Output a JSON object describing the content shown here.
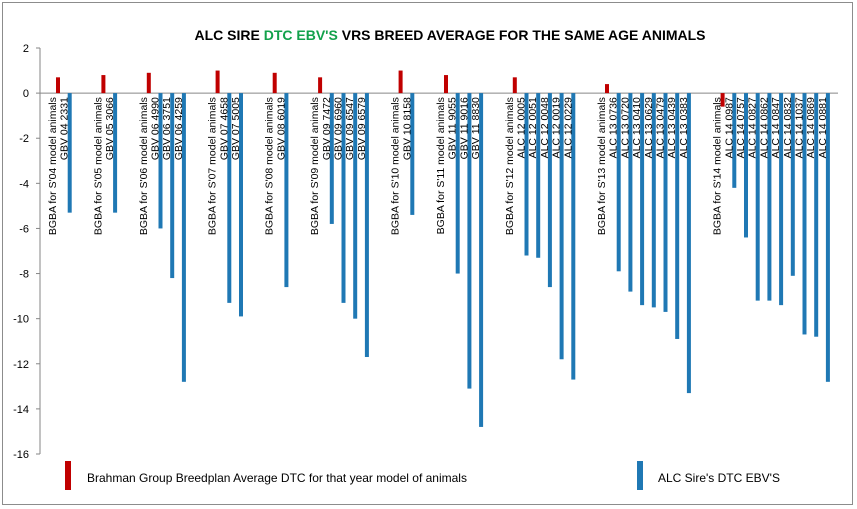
{
  "chart_data": {
    "type": "bar",
    "title_parts": [
      "ALC SIRE ",
      "DTC EBV'S",
      " VRS BREED AVERAGE FOR THE SAME AGE ANIMALS"
    ],
    "title_accent_color": "#12a14b",
    "ylim": [
      -16,
      2
    ],
    "yticks": [
      2,
      0,
      -2,
      -4,
      -6,
      -8,
      -10,
      -12,
      -14,
      -16
    ],
    "legend_placement": "bottom",
    "series": [
      {
        "name": "Brahman Group Breedplan Average DTC for that year model of animals",
        "color": "#c00000"
      },
      {
        "name": "ALC Sire's DTC EBV'S",
        "color": "#1f78b4"
      }
    ],
    "groups": [
      {
        "bars": [
          {
            "label": "BGBA for S'04 model animals",
            "value": 0.7,
            "series": 0
          },
          {
            "label": "GBV 04 2331",
            "value": -5.3,
            "series": 1
          }
        ]
      },
      {
        "bars": [
          {
            "label": "BGBA for S'05 model animals",
            "value": 0.8,
            "series": 0
          },
          {
            "label": "GBV 05 3066",
            "value": -5.3,
            "series": 1
          }
        ]
      },
      {
        "bars": [
          {
            "label": "BGBA for S'06 model animals",
            "value": 0.9,
            "series": 0
          },
          {
            "label": "GBV 06 4990",
            "value": -6.0,
            "series": 1
          },
          {
            "label": "GBV 06 3751",
            "value": -8.2,
            "series": 1
          },
          {
            "label": "GBV 06 4259",
            "value": -12.8,
            "series": 1
          }
        ]
      },
      {
        "bars": [
          {
            "label": "BGBA for S'07 model animals",
            "value": 1.0,
            "series": 0
          },
          {
            "label": "GBV 07 4658",
            "value": -9.3,
            "series": 1
          },
          {
            "label": "GBV 07 5005",
            "value": -9.9,
            "series": 1
          }
        ]
      },
      {
        "bars": [
          {
            "label": "BGBA for S'08 model animals",
            "value": 0.9,
            "series": 0
          },
          {
            "label": "GBV 08 6019",
            "value": -8.6,
            "series": 1
          }
        ]
      },
      {
        "bars": [
          {
            "label": "BGBA for S'09 model animals",
            "value": 0.7,
            "series": 0
          },
          {
            "label": "GBV 09 7472",
            "value": -5.8,
            "series": 1
          },
          {
            "label": "GBV 09 6960",
            "value": -9.3,
            "series": 1
          },
          {
            "label": "GBV 09 6547",
            "value": -10.0,
            "series": 1
          },
          {
            "label": "GBV 09 6579",
            "value": -11.7,
            "series": 1
          }
        ]
      },
      {
        "bars": [
          {
            "label": "BGBA for S'10 model animals",
            "value": 1.0,
            "series": 0
          },
          {
            "label": "GBV 10 8158",
            "value": -5.4,
            "series": 1
          }
        ]
      },
      {
        "bars": [
          {
            "label": "BGBA for S'11 model animals",
            "value": 0.8,
            "series": 0
          },
          {
            "label": "GBV 11 9055",
            "value": -8.0,
            "series": 1
          },
          {
            "label": "GBV 11 9016",
            "value": -13.1,
            "series": 1
          },
          {
            "label": "GBV 11 8830",
            "value": -14.8,
            "series": 1
          }
        ]
      },
      {
        "bars": [
          {
            "label": "BGBA for S'12 model animals",
            "value": 0.7,
            "series": 0
          },
          {
            "label": "ALC 12 0005",
            "value": -7.2,
            "series": 1
          },
          {
            "label": "ALC 12 0051",
            "value": -7.3,
            "series": 1
          },
          {
            "label": "ALC 12 0048",
            "value": -8.6,
            "series": 1
          },
          {
            "label": "ALC 12 0019",
            "value": -11.8,
            "series": 1
          },
          {
            "label": "ALC 12 0229",
            "value": -12.7,
            "series": 1
          }
        ]
      },
      {
        "bars": [
          {
            "label": "BGBA for S'13 model animals",
            "value": 0.4,
            "series": 0
          },
          {
            "label": "ALC 13 0736",
            "value": -7.9,
            "series": 1
          },
          {
            "label": "ALC 13 0720",
            "value": -8.8,
            "series": 1
          },
          {
            "label": "ALC 13 0410",
            "value": -9.4,
            "series": 1
          },
          {
            "label": "ALC 13 0629",
            "value": -9.5,
            "series": 1
          },
          {
            "label": "ALC 13 0479",
            "value": -9.7,
            "series": 1
          },
          {
            "label": "ALC 13 0439",
            "value": -10.9,
            "series": 1
          },
          {
            "label": "ALC 13 0383",
            "value": -13.3,
            "series": 1
          }
        ]
      },
      {
        "bars": [
          {
            "label": "BGBA for S'14 model animals",
            "value": -0.6,
            "series": 0
          },
          {
            "label": "ALC 14 0987",
            "value": -4.2,
            "series": 1
          },
          {
            "label": "ALC 14 0757",
            "value": -6.4,
            "series": 1
          },
          {
            "label": "ALC 14 0827",
            "value": -9.2,
            "series": 1
          },
          {
            "label": "ALC 14 0862",
            "value": -9.2,
            "series": 1
          },
          {
            "label": "ALC 14 0847",
            "value": -9.4,
            "series": 1
          },
          {
            "label": "ALC 14 0832",
            "value": -8.1,
            "series": 1
          },
          {
            "label": "ALC 14 1037",
            "value": -10.7,
            "series": 1
          },
          {
            "label": "ALC 14 0869",
            "value": -10.8,
            "series": 1
          },
          {
            "label": "ALC 14 0881",
            "value": -12.8,
            "series": 1
          }
        ]
      }
    ]
  }
}
